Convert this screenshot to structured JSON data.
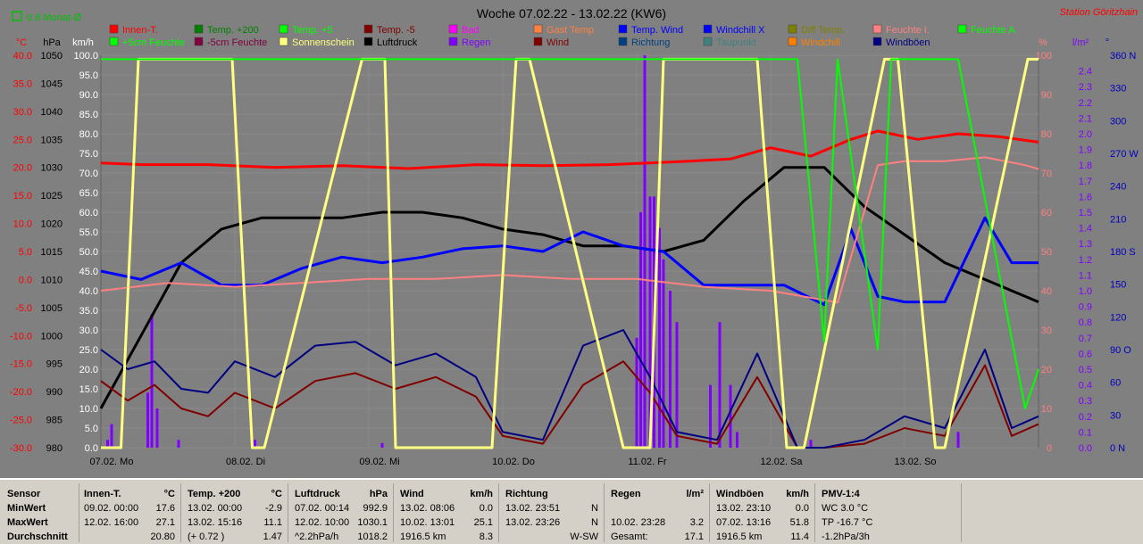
{
  "window": {
    "title": "Woche 07.02.22 - 13.02.22 (KW6)",
    "station": "Station Göritzhain",
    "month_avg_label": "0.8 Monat-Ø"
  },
  "chart_data": {
    "type": "line",
    "title": "Woche 07.02.22 - 13.02.22 (KW6)",
    "x_day_labels": [
      "07.02. Mo",
      "08.02. Di",
      "09.02. Mi",
      "10.02. Do",
      "11.02. Fr",
      "12.02. Sa",
      "13.02. So"
    ],
    "axes": [
      {
        "unit": "°C",
        "color": "#ff0000",
        "range": [
          -30,
          40
        ],
        "ticks": [
          "40.0",
          "35.0",
          "30.0",
          "25.0",
          "20.0",
          "15.0",
          "10.0",
          "5.0",
          "0.0",
          "-5.0",
          "-10.0",
          "-15.0",
          "-20.0",
          "-25.0",
          "-30.0"
        ]
      },
      {
        "unit": "hPa",
        "color": "#000000",
        "range": [
          980,
          1050
        ],
        "ticks": [
          "1050",
          "1045",
          "1040",
          "1035",
          "1030",
          "1025",
          "1020",
          "1015",
          "1010",
          "1005",
          "1000",
          "995",
          "990",
          "985",
          "980"
        ]
      },
      {
        "unit": "km/h",
        "color": "#ffffff",
        "range": [
          0,
          100
        ],
        "ticks": [
          "100.0",
          "95.0",
          "90.0",
          "85.0",
          "80.0",
          "75.0",
          "70.0",
          "65.0",
          "60.0",
          "55.0",
          "50.0",
          "45.0",
          "40.0",
          "35.0",
          "30.0",
          "25.0",
          "20.0",
          "15.0",
          "10.0",
          "5.0",
          "0.0"
        ]
      },
      {
        "unit": "%",
        "color": "#ff8080",
        "range": [
          0,
          100
        ],
        "ticks": [
          "100",
          "90",
          "80",
          "70",
          "60",
          "50",
          "40",
          "30",
          "20",
          "10",
          "0"
        ]
      },
      {
        "unit": "l/m²",
        "color": "#8000ff",
        "range": [
          0,
          2.5
        ],
        "ticks": [
          "2.4",
          "2.3",
          "2.2",
          "2.1",
          "2.0",
          "1.9",
          "1.8",
          "1.7",
          "1.6",
          "1.5",
          "1.4",
          "1.3",
          "1.2",
          "1.1",
          "1.0",
          "0.9",
          "0.8",
          "0.7",
          "0.6",
          "0.5",
          "0.4",
          "0.3",
          "0.2",
          "0.1",
          "0.0"
        ]
      },
      {
        "unit": "°",
        "color": "#0000c0",
        "range": [
          0,
          360
        ],
        "ticks": [
          "360 N",
          "330",
          "300",
          "270 W",
          "240",
          "210",
          "180 S",
          "150",
          "120",
          "90 O",
          "60",
          "30",
          "0 N"
        ]
      }
    ],
    "legend": [
      {
        "name": "Innen-T.",
        "color": "#ff0000"
      },
      {
        "name": "Temp. +200",
        "color": "#008000"
      },
      {
        "name": "Temp. +5",
        "color": "#00ff00"
      },
      {
        "name": "Temp. -5",
        "color": "#800000"
      },
      {
        "name": "Bad",
        "color": "#ff00ff"
      },
      {
        "name": "Gast Temp",
        "color": "#ff8040"
      },
      {
        "name": "Temp. Wind",
        "color": "#0000ff"
      },
      {
        "name": "Windchill X",
        "color": "#0000ff"
      },
      {
        "name": "Diff Temp.",
        "color": "#808000"
      },
      {
        "name": "Feuchte I.",
        "color": "#ff8080"
      },
      {
        "name": "Feuchte A.",
        "color": "#00ff00"
      },
      {
        "name": "+5cm Feuchte",
        "color": "#00ff00"
      },
      {
        "name": "-5cm Feuchte",
        "color": "#800040"
      },
      {
        "name": "Sonnenschein",
        "color": "#ffff80"
      },
      {
        "name": "Luftdruck",
        "color": "#000000"
      },
      {
        "name": "Regen",
        "color": "#8000ff"
      },
      {
        "name": "Wind",
        "color": "#800000"
      },
      {
        "name": "Richtung",
        "color": "#004080"
      },
      {
        "name": "Taupunkt",
        "color": "#408080"
      },
      {
        "name": "Windchill",
        "color": "#ff8000"
      },
      {
        "name": "Windböen",
        "color": "#000080"
      }
    ],
    "series": [
      {
        "name": "Innen-T.",
        "axis": "°C",
        "color": "#ff0000",
        "x": [
          0,
          0.3,
          0.8,
          1.3,
          1.8,
          2.3,
          2.8,
          3.3,
          3.8,
          4.3,
          4.7,
          5.0,
          5.3,
          5.6,
          5.8,
          6.1,
          6.4,
          6.7,
          7.0
        ],
        "values": [
          20.8,
          20.5,
          20.5,
          20.0,
          20.3,
          19.8,
          20.5,
          20.3,
          20.5,
          21.0,
          21.5,
          23.5,
          22.0,
          25.0,
          26.5,
          25.0,
          26.0,
          25.5,
          24.5
        ]
      },
      {
        "name": "Luftdruck",
        "axis": "hPa",
        "color": "#000000",
        "x": [
          0,
          0.3,
          0.6,
          0.9,
          1.2,
          1.5,
          1.8,
          2.1,
          2.4,
          2.7,
          3.0,
          3.3,
          3.6,
          3.9,
          4.2,
          4.5,
          4.8,
          5.1,
          5.4,
          5.7,
          6.0,
          6.3,
          6.6,
          6.9,
          7.0
        ],
        "values": [
          987,
          1000,
          1013,
          1019,
          1021,
          1021,
          1021,
          1022,
          1022,
          1021,
          1019,
          1018,
          1016,
          1016,
          1015,
          1017,
          1024,
          1030,
          1030,
          1023,
          1018,
          1013,
          1010,
          1007,
          1006
        ]
      },
      {
        "name": "Temp. Wind",
        "axis": "°C",
        "color": "#0000ff",
        "x": [
          0,
          0.3,
          0.6,
          0.9,
          1.2,
          1.5,
          1.8,
          2.1,
          2.4,
          2.7,
          3.0,
          3.3,
          3.6,
          3.9,
          4.2,
          4.5,
          4.8,
          5.1,
          5.4,
          5.6,
          5.8,
          6.0,
          6.3,
          6.6,
          6.8,
          7.0
        ],
        "values": [
          1.5,
          0.0,
          3.0,
          -1.0,
          -1.0,
          2.0,
          4.0,
          3.0,
          4.0,
          5.5,
          6.0,
          5.0,
          8.5,
          6.0,
          5.0,
          -1.0,
          -1.0,
          -1.0,
          -4.5,
          9.0,
          -3.0,
          -4.0,
          -4.0,
          11.0,
          3.0,
          3.0
        ]
      },
      {
        "name": "Wind",
        "axis": "km/h",
        "color": "#800000",
        "x": [
          0,
          0.2,
          0.4,
          0.6,
          0.8,
          1.0,
          1.3,
          1.6,
          1.9,
          2.2,
          2.5,
          2.8,
          3.0,
          3.3,
          3.6,
          3.9,
          4.1,
          4.3,
          4.6,
          4.9,
          5.2,
          5.4,
          5.7,
          6.0,
          6.3,
          6.6,
          6.8,
          7.0
        ],
        "values": [
          17,
          12,
          16,
          10,
          8,
          14,
          10,
          17,
          19,
          15,
          18,
          13,
          3,
          1,
          16,
          22,
          14,
          3,
          1,
          18,
          0,
          0,
          1,
          5,
          3,
          21,
          3,
          6
        ]
      },
      {
        "name": "Windböen",
        "axis": "km/h",
        "color": "#000080",
        "x": [
          0,
          0.2,
          0.4,
          0.6,
          0.8,
          1.0,
          1.3,
          1.6,
          1.9,
          2.2,
          2.5,
          2.8,
          3.0,
          3.3,
          3.6,
          3.9,
          4.1,
          4.3,
          4.6,
          4.9,
          5.2,
          5.4,
          5.7,
          6.0,
          6.3,
          6.6,
          6.8,
          7.0
        ],
        "values": [
          25,
          20,
          22,
          15,
          14,
          22,
          18,
          26,
          27,
          21,
          24,
          18,
          4,
          2,
          26,
          30,
          18,
          4,
          2,
          24,
          0,
          0,
          2,
          8,
          5,
          25,
          5,
          8
        ]
      },
      {
        "name": "Feuchte I.",
        "axis": "%",
        "color": "#ff8080",
        "x": [
          0,
          0.5,
          1.0,
          1.5,
          2.0,
          2.5,
          3.0,
          3.5,
          4.0,
          4.5,
          5.0,
          5.5,
          5.8,
          6.0,
          6.3,
          6.6,
          6.9,
          7.0
        ],
        "values": [
          40,
          42,
          41,
          42,
          43,
          43,
          44,
          43,
          43,
          41,
          40,
          37,
          72,
          73,
          73,
          74,
          72,
          71
        ]
      },
      {
        "name": "Sonnenschein",
        "axis": "%",
        "color": "#ffff80",
        "x": [
          0,
          0.15,
          0.28,
          0.98,
          1.13,
          1.22,
          1.95,
          2.12,
          2.2,
          2.92,
          3.1,
          3.2,
          3.9,
          4.1,
          4.2,
          4.9,
          5.12,
          5.25,
          5.85,
          5.95,
          6.23,
          6.3,
          6.92,
          7.0
        ],
        "values": [
          0,
          0,
          99,
          99,
          0,
          0,
          99,
          99,
          0,
          0,
          99,
          99,
          0,
          0,
          99,
          99,
          0,
          0,
          99,
          99,
          0,
          0,
          99,
          99
        ]
      },
      {
        "name": "Feuchte A.",
        "axis": "%",
        "color": "#00ff00",
        "x": [
          0,
          5.0,
          5.2,
          5.4,
          5.5,
          5.8,
          5.9,
          6.2,
          6.4,
          6.9,
          7.0
        ],
        "values": [
          99,
          99,
          99,
          27,
          99,
          25,
          99,
          99,
          99,
          10,
          20
        ]
      }
    ],
    "rain_bars": {
      "name": "Regen",
      "axis": "l/m²",
      "color": "#8000ff",
      "x": [
        0.05,
        0.08,
        0.35,
        0.38,
        0.42,
        0.58,
        1.15,
        2.1,
        4.0,
        4.03,
        4.06,
        4.1,
        4.13,
        4.17,
        4.2,
        4.25,
        4.3,
        4.55,
        4.62,
        4.7,
        4.75,
        5.3,
        6.4
      ],
      "values": [
        0.05,
        0.15,
        0.35,
        0.85,
        0.25,
        0.05,
        0.05,
        0.03,
        0.7,
        1.5,
        2.5,
        1.6,
        1.6,
        1.4,
        1.2,
        1.0,
        0.8,
        0.4,
        0.8,
        0.4,
        0.1,
        0.05,
        0.1
      ]
    }
  },
  "stats": {
    "row_labels": [
      "Sensor",
      "MinWert",
      "MaxWert",
      "Durchschnitt"
    ],
    "columns": [
      {
        "header": "Innen-T.",
        "unit": "°C",
        "min_time": "09.02.  00:00",
        "min_val": "17.6",
        "max_time": "12.02.  16:00",
        "max_val": "27.1",
        "avg_l": "",
        "avg_r": "20.80"
      },
      {
        "header": "Temp. +200",
        "unit": "°C",
        "min_time": "13.02.  00:00",
        "min_val": "-2.9",
        "max_time": "13.02.  15:16",
        "max_val": "11.1",
        "avg_l": "(+ 0.72 )",
        "avg_r": "1.47"
      },
      {
        "header": "Luftdruck",
        "unit": "hPa",
        "min_time": "07.02.  00:14",
        "min_val": "992.9",
        "max_time": "12.02.  10:00",
        "max_val": "1030.1",
        "avg_l": "^2.2hPa/h",
        "avg_r": "1018.2"
      },
      {
        "header": "Wind",
        "unit": "km/h",
        "min_time": "13.02.  08:06",
        "min_val": "0.0",
        "max_time": "10.02.  13:01",
        "max_val": "25.1",
        "avg_l": "1916.5 km",
        "avg_r": "8.3"
      },
      {
        "header": "Richtung",
        "unit": "",
        "min_time": "13.02.  23:51",
        "min_val": "N",
        "max_time": "13.02.  23:26",
        "max_val": "N",
        "avg_l": "",
        "avg_r": "W-SW"
      },
      {
        "header": "Regen",
        "unit": "l/m²",
        "min_time": "",
        "min_val": "",
        "max_time": "10.02.  23:28",
        "max_val": "3.2",
        "avg_l": "Gesamt:",
        "avg_r": "17.1"
      },
      {
        "header": "Windböen",
        "unit": "km/h",
        "min_time": "13.02.  23:10",
        "min_val": "0.0",
        "max_time": "07.02.  13:16",
        "max_val": "51.8",
        "avg_l": "1916.5 km",
        "avg_r": "11.4"
      },
      {
        "header": "PMV-1:4",
        "unit": "",
        "min_time": "WC 3.0 °C",
        "min_val": "",
        "max_time": "TP -16.7 °C",
        "max_val": "",
        "avg_l": "-1.2hPa/3h",
        "avg_r": ""
      }
    ]
  }
}
